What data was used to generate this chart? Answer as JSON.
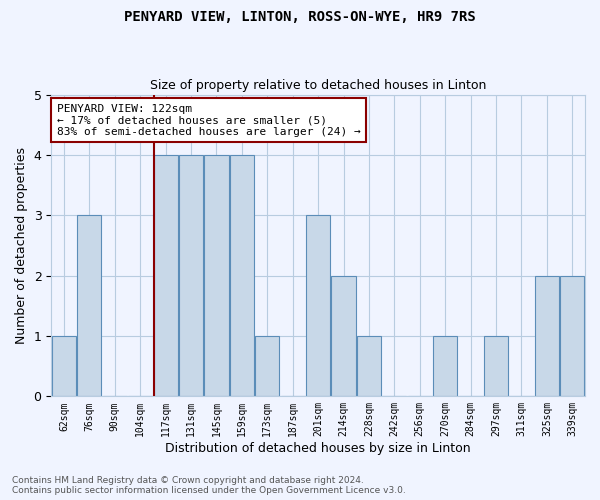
{
  "title": "PENYARD VIEW, LINTON, ROSS-ON-WYE, HR9 7RS",
  "subtitle": "Size of property relative to detached houses in Linton",
  "xlabel": "Distribution of detached houses by size in Linton",
  "ylabel": "Number of detached properties",
  "categories": [
    "62sqm",
    "76sqm",
    "90sqm",
    "104sqm",
    "117sqm",
    "131sqm",
    "145sqm",
    "159sqm",
    "173sqm",
    "187sqm",
    "201sqm",
    "214sqm",
    "228sqm",
    "242sqm",
    "256sqm",
    "270sqm",
    "284sqm",
    "297sqm",
    "311sqm",
    "325sqm",
    "339sqm"
  ],
  "values": [
    1,
    3,
    0,
    0,
    4,
    4,
    4,
    4,
    1,
    0,
    3,
    2,
    1,
    0,
    0,
    1,
    0,
    1,
    0,
    2,
    2
  ],
  "bar_color": "#c8d8e8",
  "bar_edge_color": "#5b8db8",
  "marker_line_index": 4,
  "marker_line_color": "#8b0000",
  "annotation_text": "PENYARD VIEW: 122sqm\n← 17% of detached houses are smaller (5)\n83% of semi-detached houses are larger (24) →",
  "annotation_box_color": "white",
  "annotation_box_edge_color": "#8b0000",
  "ylim": [
    0,
    5
  ],
  "yticks": [
    0,
    1,
    2,
    3,
    4,
    5
  ],
  "footer_line1": "Contains HM Land Registry data © Crown copyright and database right 2024.",
  "footer_line2": "Contains public sector information licensed under the Open Government Licence v3.0.",
  "background_color": "#f0f4ff",
  "grid_color": "#b8cce0"
}
